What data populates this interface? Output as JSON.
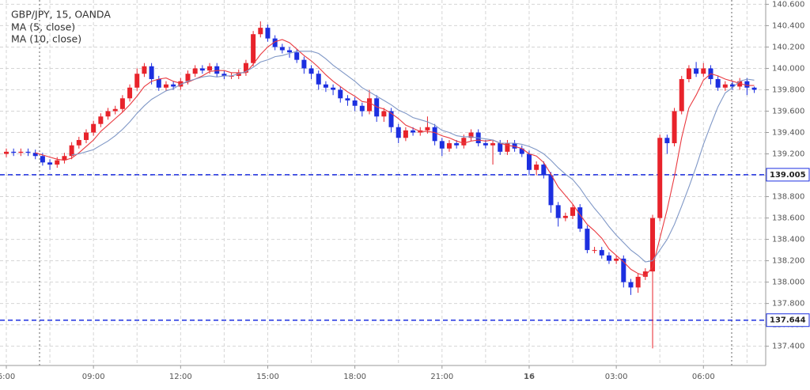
{
  "chart_data": {
    "type": "candlestick",
    "title": "GBP/JPY, 15, OANDA",
    "categories": [
      "6:00",
      null,
      null,
      null,
      null,
      null,
      null,
      null,
      null,
      null,
      null,
      null,
      "09:00",
      null,
      null,
      null,
      null,
      null,
      null,
      null,
      null,
      null,
      null,
      null,
      "12:00",
      null,
      null,
      null,
      null,
      null,
      null,
      null,
      null,
      null,
      null,
      null,
      "15:00",
      null,
      null,
      null,
      null,
      null,
      null,
      null,
      null,
      null,
      null,
      null,
      "18:00",
      null,
      null,
      null,
      null,
      null,
      null,
      null,
      null,
      null,
      null,
      null,
      "21:00",
      null,
      null,
      null,
      null,
      null,
      null,
      null,
      null,
      null,
      null,
      null,
      "16",
      null,
      null,
      null,
      null,
      null,
      null,
      null,
      null,
      null,
      null,
      null,
      "03:00",
      null,
      null,
      null,
      null,
      null,
      null,
      null,
      null,
      null,
      null,
      null,
      "06:00",
      null,
      null,
      null,
      null,
      null,
      null,
      null
    ],
    "open": [
      139.2,
      139.22,
      139.21,
      139.22,
      139.21,
      139.18,
      139.12,
      139.1,
      139.14,
      139.18,
      139.28,
      139.33,
      139.4,
      139.48,
      139.55,
      139.6,
      139.62,
      139.72,
      139.82,
      139.95,
      140.02,
      139.9,
      139.82,
      139.85,
      139.83,
      139.88,
      139.95,
      140.0,
      139.98,
      140.02,
      139.95,
      139.93,
      139.93,
      139.96,
      140.05,
      140.32,
      140.38,
      140.28,
      140.2,
      140.17,
      140.15,
      140.08,
      140.0,
      139.95,
      139.85,
      139.82,
      139.8,
      139.72,
      139.7,
      139.65,
      139.6,
      139.72,
      139.55,
      139.6,
      139.45,
      139.35,
      139.42,
      139.4,
      139.42,
      139.45,
      139.32,
      139.25,
      139.3,
      139.28,
      139.35,
      139.4,
      139.3,
      139.28,
      139.3,
      139.22,
      139.3,
      139.25,
      139.2,
      139.05,
      139.1,
      139.0,
      138.72,
      138.6,
      138.62,
      138.7,
      138.5,
      138.3,
      138.3,
      138.25,
      138.2,
      138.22,
      138.0,
      137.95,
      138.05,
      138.1,
      138.6,
      139.35,
      139.3,
      139.6,
      139.9,
      140.0,
      139.95,
      140.0,
      139.9,
      139.82,
      139.85,
      139.83,
      139.88,
      139.82
    ],
    "high": [
      139.25,
      139.25,
      139.25,
      139.25,
      139.24,
      139.21,
      139.15,
      139.17,
      139.21,
      139.31,
      139.36,
      139.43,
      139.51,
      139.58,
      139.63,
      139.65,
      139.75,
      139.85,
      140.0,
      140.05,
      140.05,
      139.93,
      139.88,
      139.88,
      139.91,
      139.98,
      140.03,
      140.03,
      140.05,
      140.05,
      139.98,
      139.96,
      139.99,
      140.08,
      140.35,
      140.44,
      140.41,
      140.31,
      140.23,
      140.2,
      140.18,
      140.11,
      140.03,
      139.98,
      139.88,
      139.85,
      139.83,
      139.75,
      139.73,
      139.68,
      139.8,
      139.75,
      139.63,
      139.63,
      139.48,
      139.45,
      139.45,
      139.45,
      139.55,
      139.48,
      139.35,
      139.33,
      139.33,
      139.38,
      139.43,
      139.43,
      139.33,
      139.33,
      139.33,
      139.33,
      139.33,
      139.28,
      139.23,
      139.13,
      139.13,
      139.03,
      138.75,
      138.65,
      138.73,
      138.73,
      138.53,
      138.33,
      138.33,
      138.28,
      138.25,
      138.25,
      138.03,
      138.08,
      138.13,
      138.63,
      139.38,
      139.38,
      139.63,
      139.93,
      140.03,
      140.06,
      140.05,
      140.03,
      139.93,
      139.88,
      139.88,
      139.91,
      139.91,
      139.83
    ],
    "low": [
      139.17,
      139.18,
      139.18,
      139.18,
      139.15,
      139.09,
      139.05,
      139.07,
      139.11,
      139.15,
      139.25,
      139.3,
      139.37,
      139.45,
      139.52,
      139.57,
      139.59,
      139.69,
      139.79,
      139.92,
      139.85,
      139.79,
      139.79,
      139.8,
      139.8,
      139.85,
      139.92,
      139.95,
      139.95,
      139.92,
      139.9,
      139.9,
      139.9,
      139.93,
      140.02,
      140.29,
      140.25,
      140.17,
      140.14,
      140.1,
      140.05,
      139.95,
      139.9,
      139.8,
      139.78,
      139.75,
      139.68,
      139.65,
      139.6,
      139.55,
      139.57,
      139.5,
      139.5,
      139.4,
      139.3,
      139.32,
      139.37,
      139.37,
      139.39,
      139.28,
      139.18,
      139.22,
      139.25,
      139.25,
      139.32,
      139.27,
      139.25,
      139.1,
      139.19,
      139.19,
      139.22,
      139.17,
      139.0,
      139.0,
      138.97,
      138.65,
      138.52,
      138.57,
      138.59,
      138.47,
      138.27,
      138.27,
      138.22,
      138.17,
      138.17,
      137.95,
      137.88,
      137.9,
      138.02,
      137.38,
      138.57,
      139.2,
      139.27,
      139.57,
      139.87,
      139.92,
      139.92,
      139.85,
      139.79,
      139.79,
      139.8,
      139.8,
      139.75,
      139.77
    ],
    "close": [
      139.22,
      139.21,
      139.22,
      139.21,
      139.18,
      139.12,
      139.1,
      139.14,
      139.18,
      139.28,
      139.33,
      139.4,
      139.48,
      139.55,
      139.6,
      139.62,
      139.72,
      139.82,
      139.95,
      140.02,
      139.9,
      139.82,
      139.85,
      139.83,
      139.88,
      139.95,
      140.0,
      139.98,
      140.02,
      139.95,
      139.93,
      139.93,
      139.96,
      140.05,
      140.32,
      140.38,
      140.28,
      140.2,
      140.17,
      140.15,
      140.08,
      140.0,
      139.95,
      139.85,
      139.82,
      139.8,
      139.72,
      139.7,
      139.65,
      139.6,
      139.72,
      139.55,
      139.6,
      139.45,
      139.35,
      139.42,
      139.4,
      139.42,
      139.45,
      139.32,
      139.25,
      139.3,
      139.28,
      139.35,
      139.4,
      139.3,
      139.28,
      139.3,
      139.22,
      139.3,
      139.25,
      139.2,
      139.05,
      139.1,
      139.0,
      138.72,
      138.6,
      138.62,
      138.7,
      138.5,
      138.3,
      138.3,
      138.25,
      138.2,
      138.22,
      138.0,
      137.95,
      138.05,
      138.1,
      138.6,
      139.35,
      139.3,
      139.6,
      139.9,
      140.0,
      139.95,
      140.0,
      139.9,
      139.82,
      139.85,
      139.83,
      139.88,
      139.82,
      139.8
    ],
    "up_color": "#e8232b",
    "down_color": "#1c2fe0",
    "series": [
      {
        "name": "MA (5, close)",
        "color": "#ea3a40",
        "values": [
          null,
          null,
          null,
          null,
          139.21,
          139.19,
          139.17,
          139.15,
          139.14,
          139.16,
          139.21,
          139.27,
          139.33,
          139.41,
          139.47,
          139.53,
          139.59,
          139.66,
          139.74,
          139.83,
          139.88,
          139.9,
          139.91,
          139.88,
          139.86,
          139.87,
          139.9,
          139.93,
          139.97,
          139.98,
          139.98,
          139.96,
          139.96,
          139.96,
          140.04,
          140.13,
          140.2,
          140.25,
          140.27,
          140.24,
          140.18,
          140.12,
          140.07,
          140.01,
          139.94,
          139.88,
          139.83,
          139.78,
          139.74,
          139.69,
          139.68,
          139.64,
          139.62,
          139.58,
          139.53,
          139.47,
          139.44,
          139.41,
          139.41,
          139.4,
          139.37,
          139.35,
          139.32,
          139.3,
          139.32,
          139.33,
          139.32,
          139.33,
          139.3,
          139.28,
          139.27,
          139.25,
          139.2,
          139.18,
          139.12,
          139.01,
          138.89,
          138.81,
          138.73,
          138.63,
          138.54,
          138.48,
          138.41,
          138.31,
          138.25,
          138.19,
          138.12,
          138.08,
          138.06,
          138.14,
          138.41,
          138.68,
          138.99,
          139.35,
          139.63,
          139.75,
          139.89,
          139.95,
          139.93,
          139.9,
          139.88,
          139.86,
          139.84,
          139.84
        ]
      },
      {
        "name": "MA (10, close)",
        "color": "#7f97c6",
        "values": [
          null,
          null,
          null,
          null,
          null,
          null,
          null,
          null,
          null,
          139.19,
          139.2,
          139.22,
          139.24,
          139.28,
          139.32,
          139.37,
          139.43,
          139.5,
          139.58,
          139.65,
          139.71,
          139.75,
          139.79,
          139.81,
          139.85,
          139.88,
          139.9,
          139.92,
          139.93,
          139.92,
          139.93,
          139.93,
          139.95,
          139.97,
          140.01,
          140.06,
          140.08,
          140.11,
          140.12,
          140.14,
          140.16,
          140.16,
          140.16,
          140.14,
          140.09,
          140.03,
          139.98,
          139.93,
          139.88,
          139.82,
          139.78,
          139.74,
          139.7,
          139.66,
          139.61,
          139.58,
          139.54,
          139.52,
          139.5,
          139.47,
          139.42,
          139.4,
          139.37,
          139.36,
          139.36,
          139.35,
          139.34,
          139.33,
          139.3,
          139.3,
          139.3,
          139.29,
          139.27,
          139.24,
          139.2,
          139.14,
          139.07,
          139.01,
          138.96,
          138.88,
          138.78,
          138.69,
          138.61,
          138.52,
          138.44,
          138.37,
          138.3,
          138.25,
          138.19,
          138.2,
          138.3,
          138.4,
          138.54,
          138.71,
          138.89,
          139.08,
          139.29,
          139.47,
          139.64,
          139.77,
          139.82,
          139.88,
          139.9,
          139.89
        ]
      }
    ],
    "hlines": [
      {
        "value": 139.005,
        "color": "#1c2fe0"
      },
      {
        "value": 137.644,
        "color": "#1c2fe0"
      }
    ],
    "ylim": [
      137.22,
      140.64
    ],
    "yticks": [
      {
        "value": 137.4,
        "label": "137.400"
      },
      {
        "value": 137.6,
        "label": "137.600"
      },
      {
        "value": 137.8,
        "label": "137.800"
      },
      {
        "value": 138.0,
        "label": "138.000"
      },
      {
        "value": 138.2,
        "label": "138.200"
      },
      {
        "value": 138.4,
        "label": "138.400"
      },
      {
        "value": 138.6,
        "label": "138.600"
      },
      {
        "value": 138.8,
        "label": "138.800"
      },
      {
        "value": 139.0,
        "label": "139.000"
      },
      {
        "value": 139.2,
        "label": "139.200"
      },
      {
        "value": 139.4,
        "label": "139.400"
      },
      {
        "value": 139.6,
        "label": "139.600"
      },
      {
        "value": 139.8,
        "label": "139.800"
      },
      {
        "value": 140.0,
        "label": "140.000"
      },
      {
        "value": 140.2,
        "label": "140.200"
      },
      {
        "value": 140.4,
        "label": "140.400"
      },
      {
        "value": 140.6,
        "label": "140.600"
      }
    ],
    "grid": true
  }
}
